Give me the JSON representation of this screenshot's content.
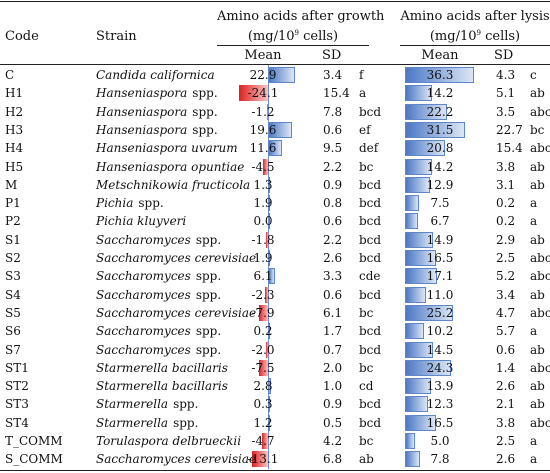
{
  "header": {
    "code": "Code",
    "strain": "Strain",
    "growth_title": "Amino acids after growth",
    "growth_units_a": "(mg/10",
    "growth_units_exp": "9",
    "growth_units_b": " cells)",
    "lysis_title": "Amino acids after lysis",
    "lysis_units_a": "(mg/10",
    "lysis_units_exp": "9",
    "lysis_units_b": " cells)",
    "mean": "Mean",
    "sd": "SD",
    "mean2": "Mean",
    "sd2": "SD"
  },
  "rows": [
    {
      "code": "C",
      "genus": "Candida californica",
      "spp": "",
      "g_mean": "22.9",
      "g_val": 22.9,
      "g_sd": "3.4",
      "g_grp": "f",
      "l_mean": "36.3",
      "l_val": 36.3,
      "l_sd": "4.3",
      "l_grp": "c"
    },
    {
      "code": "H1",
      "genus": "Hanseniaspora",
      "spp": "spp.",
      "g_mean": "-24.1",
      "g_val": -24.1,
      "g_sd": "15.4",
      "g_grp": "a",
      "l_mean": "14.2",
      "l_val": 14.2,
      "l_sd": "5.1",
      "l_grp": "ab"
    },
    {
      "code": "H2",
      "genus": "Hanseniaspora",
      "spp": "spp.",
      "g_mean": "-1.2",
      "g_val": -1.2,
      "g_sd": "7.8",
      "g_grp": "bcd",
      "l_mean": "22.2",
      "l_val": 22.2,
      "l_sd": "3.5",
      "l_grp": "abc"
    },
    {
      "code": "H3",
      "genus": "Hanseniaspora",
      "spp": "spp.",
      "g_mean": "19.6",
      "g_val": 19.6,
      "g_sd": "0.6",
      "g_grp": "ef",
      "l_mean": "31.5",
      "l_val": 31.5,
      "l_sd": "22.7",
      "l_grp": "bc"
    },
    {
      "code": "H4",
      "genus": "Hanseniaspora uvarum",
      "spp": "",
      "g_mean": "11.6",
      "g_val": 11.6,
      "g_sd": "9.5",
      "g_grp": "def",
      "l_mean": "20.8",
      "l_val": 20.8,
      "l_sd": "15.4",
      "l_grp": "abc"
    },
    {
      "code": "H5",
      "genus": "Hanseniaspora opuntiae",
      "spp": "",
      "g_mean": "-4.5",
      "g_val": -4.5,
      "g_sd": "2.2",
      "g_grp": "bc",
      "l_mean": "14.2",
      "l_val": 14.2,
      "l_sd": "3.8",
      "l_grp": "ab"
    },
    {
      "code": "M",
      "genus": "Metschnikowia fructicola",
      "spp": "",
      "g_mean": "1.3",
      "g_val": 1.3,
      "g_sd": "0.9",
      "g_grp": "bcd",
      "l_mean": "12.9",
      "l_val": 12.9,
      "l_sd": "3.1",
      "l_grp": "ab"
    },
    {
      "code": "P1",
      "genus": "Pichia",
      "spp": "spp.",
      "g_mean": "1.9",
      "g_val": 1.9,
      "g_sd": "0.8",
      "g_grp": "bcd",
      "l_mean": "7.5",
      "l_val": 7.5,
      "l_sd": "0.2",
      "l_grp": "a"
    },
    {
      "code": "P2",
      "genus": "Pichia kluyveri",
      "spp": "",
      "g_mean": "0.0",
      "g_val": 0.0,
      "g_sd": "0.6",
      "g_grp": "bcd",
      "l_mean": "6.7",
      "l_val": 6.7,
      "l_sd": "0.2",
      "l_grp": "a"
    },
    {
      "code": "S1",
      "genus": "Saccharomyces",
      "spp": "spp.",
      "g_mean": "-1.8",
      "g_val": -1.8,
      "g_sd": "2.2",
      "g_grp": "bcd",
      "l_mean": "14.9",
      "l_val": 14.9,
      "l_sd": "2.9",
      "l_grp": "ab"
    },
    {
      "code": "S2",
      "genus": "Saccharomyces cerevisiae",
      "spp": "",
      "g_mean": "1.9",
      "g_val": 1.9,
      "g_sd": "2.6",
      "g_grp": "bcd",
      "l_mean": "16.5",
      "l_val": 16.5,
      "l_sd": "2.5",
      "l_grp": "abc"
    },
    {
      "code": "S3",
      "genus": "Saccharomyces",
      "spp": "spp.",
      "g_mean": "6.1",
      "g_val": 6.1,
      "g_sd": "3.3",
      "g_grp": "cde",
      "l_mean": "17.1",
      "l_val": 17.1,
      "l_sd": "5.2",
      "l_grp": "abc"
    },
    {
      "code": "S4",
      "genus": "Saccharomyces",
      "spp": "spp.",
      "g_mean": "-2.3",
      "g_val": -2.3,
      "g_sd": "0.6",
      "g_grp": "bcd",
      "l_mean": "11.0",
      "l_val": 11.0,
      "l_sd": "3.4",
      "l_grp": "ab"
    },
    {
      "code": "S5",
      "genus": "Saccharomyces cerevisiae",
      "spp": "",
      "g_mean": "-7.9",
      "g_val": -7.9,
      "g_sd": "6.1",
      "g_grp": "bc",
      "l_mean": "25.2",
      "l_val": 25.2,
      "l_sd": "4.7",
      "l_grp": "abc"
    },
    {
      "code": "S6",
      "genus": "Saccharomyces",
      "spp": "spp.",
      "g_mean": "0.2",
      "g_val": 0.2,
      "g_sd": "1.7",
      "g_grp": "bcd",
      "l_mean": "10.2",
      "l_val": 10.2,
      "l_sd": "5.7",
      "l_grp": "a"
    },
    {
      "code": "S7",
      "genus": "Saccharomyces",
      "spp": "spp.",
      "g_mean": "-2.0",
      "g_val": -2.0,
      "g_sd": "0.7",
      "g_grp": "bcd",
      "l_mean": "14.5",
      "l_val": 14.5,
      "l_sd": "0.6",
      "l_grp": "ab"
    },
    {
      "code": "ST1",
      "genus": "Starmerella bacillaris",
      "spp": "",
      "g_mean": "-7.5",
      "g_val": -7.5,
      "g_sd": "2.0",
      "g_grp": "bc",
      "l_mean": "24.3",
      "l_val": 24.3,
      "l_sd": "1.4",
      "l_grp": "abc"
    },
    {
      "code": "ST2",
      "genus": "Starmerella bacillaris",
      "spp": "",
      "g_mean": "2.8",
      "g_val": 2.8,
      "g_sd": "1.0",
      "g_grp": "cd",
      "l_mean": "13.9",
      "l_val": 13.9,
      "l_sd": "2.6",
      "l_grp": "ab"
    },
    {
      "code": "ST3",
      "genus": "Starmerella",
      "spp": "spp.",
      "g_mean": "0.3",
      "g_val": 0.3,
      "g_sd": "0.9",
      "g_grp": "bcd",
      "l_mean": "12.3",
      "l_val": 12.3,
      "l_sd": "2.1",
      "l_grp": "ab"
    },
    {
      "code": "ST4",
      "genus": "Starmerella",
      "spp": "spp.",
      "g_mean": "1.2",
      "g_val": 1.2,
      "g_sd": "0.5",
      "g_grp": "bcd",
      "l_mean": "16.5",
      "l_val": 16.5,
      "l_sd": "3.8",
      "l_grp": "abc"
    },
    {
      "code": "T_COMM",
      "genus": "Torulaspora delbrueckii",
      "spp": "",
      "g_mean": "-4.7",
      "g_val": -4.7,
      "g_sd": "4.2",
      "g_grp": "bc",
      "l_mean": "5.0",
      "l_val": 5.0,
      "l_sd": "2.5",
      "l_grp": "a"
    },
    {
      "code": "S_COMM",
      "genus": "Saccharomyces cerevisiae",
      "spp": "",
      "g_mean": "-13.1",
      "g_val": -13.1,
      "g_sd": "6.8",
      "g_grp": "ab",
      "l_mean": "7.8",
      "l_val": 7.8,
      "l_sd": "2.6",
      "l_grp": "a"
    }
  ]
}
